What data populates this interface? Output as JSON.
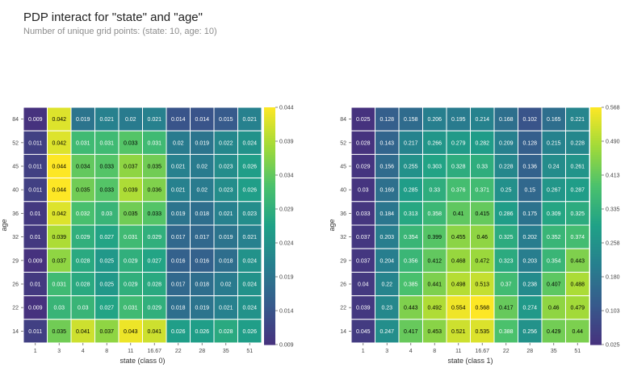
{
  "title": "PDP interact for \"state\" and \"age\"",
  "subtitle": "Number of unique grid points: (state: 10, age: 10)",
  "chart_data": [
    {
      "type": "heatmap",
      "xlabel": "state (class 0)",
      "ylabel": "age",
      "x": [
        "1",
        "3",
        "4",
        "8",
        "11",
        "16.67",
        "22",
        "28",
        "35",
        "51"
      ],
      "y": [
        "84",
        "52",
        "45",
        "40",
        "36",
        "32",
        "29",
        "26",
        "22",
        "14"
      ],
      "values": [
        [
          0.009,
          0.042,
          0.019,
          0.021,
          0.02,
          0.021,
          0.014,
          0.014,
          0.015,
          0.021
        ],
        [
          0.011,
          0.042,
          0.031,
          0.031,
          0.033,
          0.031,
          0.02,
          0.019,
          0.022,
          0.024
        ],
        [
          0.011,
          0.044,
          0.034,
          0.033,
          0.037,
          0.035,
          0.021,
          0.02,
          0.023,
          0.026
        ],
        [
          0.011,
          0.044,
          0.035,
          0.033,
          0.039,
          0.036,
          0.021,
          0.02,
          0.023,
          0.026
        ],
        [
          0.01,
          0.042,
          0.032,
          0.03,
          0.035,
          0.033,
          0.019,
          0.018,
          0.021,
          0.023
        ],
        [
          0.01,
          0.039,
          0.029,
          0.027,
          0.031,
          0.029,
          0.017,
          0.017,
          0.019,
          0.021
        ],
        [
          0.009,
          0.037,
          0.028,
          0.025,
          0.029,
          0.027,
          0.016,
          0.016,
          0.018,
          0.024
        ],
        [
          0.01,
          0.031,
          0.028,
          0.025,
          0.029,
          0.028,
          0.017,
          0.018,
          0.02,
          0.024
        ],
        [
          0.009,
          0.03,
          0.03,
          0.027,
          0.031,
          0.029,
          0.018,
          0.019,
          0.021,
          0.024
        ],
        [
          0.011,
          0.035,
          0.041,
          0.037,
          0.043,
          0.041,
          0.026,
          0.026,
          0.028,
          0.026
        ]
      ],
      "colorbar_ticks": [
        "0.044",
        "0.039",
        "0.034",
        "0.029",
        "0.024",
        "0.019",
        "0.014",
        "0.009"
      ],
      "colorbar_range": [
        0.009,
        0.044
      ]
    },
    {
      "type": "heatmap",
      "xlabel": "state (class 1)",
      "ylabel": "age",
      "x": [
        "1",
        "3",
        "4",
        "8",
        "11",
        "16.67",
        "22",
        "28",
        "35",
        "51"
      ],
      "y": [
        "84",
        "52",
        "45",
        "40",
        "36",
        "32",
        "29",
        "26",
        "22",
        "14"
      ],
      "values": [
        [
          0.025,
          0.128,
          0.158,
          0.206,
          0.195,
          0.214,
          0.168,
          0.102,
          0.165,
          0.221
        ],
        [
          0.028,
          0.143,
          0.217,
          0.266,
          0.279,
          0.282,
          0.209,
          0.128,
          0.215,
          0.228
        ],
        [
          0.029,
          0.156,
          0.255,
          0.303,
          0.328,
          0.33,
          0.228,
          0.136,
          0.24,
          0.261
        ],
        [
          0.03,
          0.169,
          0.285,
          0.33,
          0.376,
          0.371,
          0.25,
          0.15,
          0.267,
          0.287
        ],
        [
          0.033,
          0.184,
          0.313,
          0.358,
          0.41,
          0.415,
          0.286,
          0.175,
          0.309,
          0.325
        ],
        [
          0.037,
          0.203,
          0.354,
          0.399,
          0.455,
          0.46,
          0.325,
          0.202,
          0.352,
          0.374
        ],
        [
          0.037,
          0.204,
          0.356,
          0.412,
          0.468,
          0.472,
          0.323,
          0.203,
          0.354,
          0.443
        ],
        [
          0.04,
          0.22,
          0.385,
          0.441,
          0.498,
          0.513,
          0.37,
          0.238,
          0.407,
          0.488
        ],
        [
          0.039,
          0.23,
          0.443,
          0.492,
          0.554,
          0.568,
          0.417,
          0.274,
          0.46,
          0.479
        ],
        [
          0.045,
          0.247,
          0.417,
          0.453,
          0.521,
          0.535,
          0.388,
          0.256,
          0.429,
          0.44
        ]
      ],
      "colorbar_ticks": [
        "0.568",
        "0.490",
        "0.413",
        "0.335",
        "0.258",
        "0.180",
        "0.103",
        "0.025"
      ],
      "colorbar_range": [
        0.025,
        0.568
      ]
    }
  ],
  "colormap": [
    "#46327e",
    "#375a8c",
    "#277f8e",
    "#1fa187",
    "#4ac16d",
    "#a0da39",
    "#fde725"
  ]
}
